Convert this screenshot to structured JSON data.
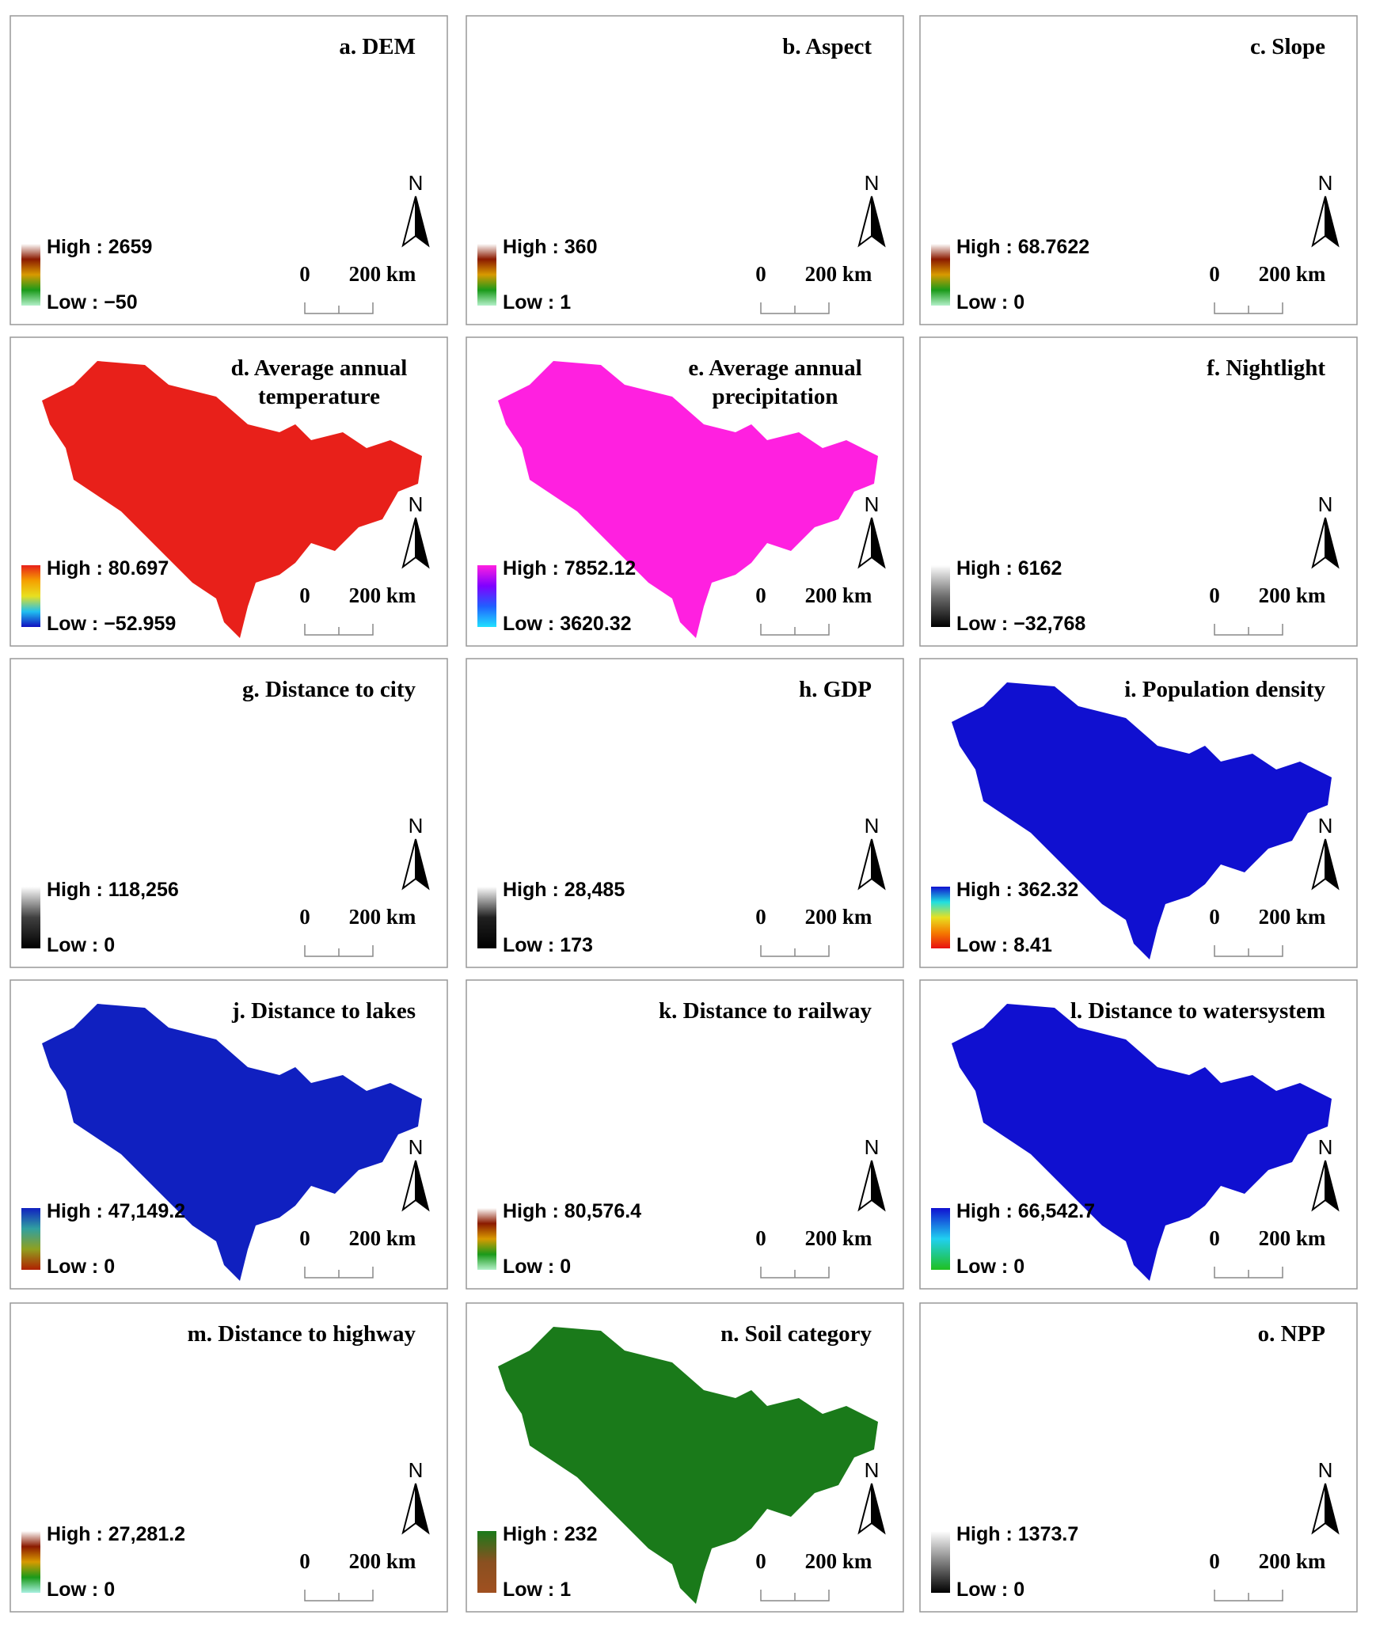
{
  "panels": [
    {
      "title": [
        "a. DEM"
      ],
      "high": "High : 2659",
      "low": "Low : −50",
      "north": "N",
      "scale": [
        "0",
        "200 km"
      ],
      "colors": [
        "#ffffff",
        "#8b1a00",
        "#d89a00",
        "#1a9a1a",
        "#b3f0c8"
      ]
    },
    {
      "title": [
        "b. Aspect"
      ],
      "high": "High : 360",
      "low": "Low : 1",
      "north": "N",
      "scale": [
        "0",
        "200 km"
      ],
      "colors": [
        "#ffffff",
        "#8b1a00",
        "#d89a00",
        "#1a9a1a",
        "#b3f0c8"
      ]
    },
    {
      "title": [
        "c. Slope"
      ],
      "high": "High : 68.7622",
      "low": "Low : 0",
      "north": "N",
      "scale": [
        "0",
        "200 km"
      ],
      "colors": [
        "#ffffff",
        "#8b1a00",
        "#d89a00",
        "#1a9a1a",
        "#b3f0c8"
      ]
    },
    {
      "title": [
        "d. Average annual",
        "temperature"
      ],
      "high": "High : 80.697",
      "low": "Low : −52.959",
      "north": "N",
      "scale": [
        "0",
        "200 km"
      ],
      "colors": [
        "#e8201a",
        "#f5a000",
        "#e8e020",
        "#20c0f0",
        "#1010c0"
      ]
    },
    {
      "title": [
        "e. Average annual",
        "precipitation"
      ],
      "high": "High : 7852.12",
      "low": "Low : 3620.32",
      "north": "N",
      "scale": [
        "0",
        "200 km"
      ],
      "colors": [
        "#ff20e0",
        "#8000ff",
        "#2060ff",
        "#20e0ff"
      ]
    },
    {
      "title": [
        "f. Nightlight"
      ],
      "high": "High : 6162",
      "low": "Low : −32,768",
      "north": "N",
      "scale": [
        "0",
        "200 km"
      ],
      "colors": [
        "#ffffff",
        "#6e6e6e",
        "#000000"
      ]
    },
    {
      "title": [
        "g. Distance to city"
      ],
      "high": "High : 118,256",
      "low": "Low : 0",
      "north": "N",
      "scale": [
        "0",
        "200 km"
      ],
      "colors": [
        "#ffffff",
        "#404040",
        "#000000"
      ]
    },
    {
      "title": [
        "h. GDP"
      ],
      "high": "High : 28,485",
      "low": "Low : 173",
      "north": "N",
      "scale": [
        "0",
        "200 km"
      ],
      "colors": [
        "#ffffff",
        "#202020",
        "#000000"
      ]
    },
    {
      "title": [
        "i. Population density"
      ],
      "high": "High : 362.32",
      "low": "Low : 8.41",
      "north": "N",
      "scale": [
        "0",
        "200 km"
      ],
      "colors": [
        "#1010d0",
        "#20e0e0",
        "#e8e020",
        "#f57a00",
        "#e81010"
      ]
    },
    {
      "title": [
        "j. Distance to lakes"
      ],
      "high": "High : 47,149.2",
      "low": "Low : 0",
      "north": "N",
      "scale": [
        "0",
        "200 km"
      ],
      "colors": [
        "#1020c0",
        "#30a0a0",
        "#90a020",
        "#b02000"
      ]
    },
    {
      "title": [
        "k. Distance to railway"
      ],
      "high": "High : 80,576.4",
      "low": "Low : 0",
      "north": "N",
      "scale": [
        "0",
        "200 km"
      ],
      "colors": [
        "#ffffff",
        "#8b1a00",
        "#d89a00",
        "#1a9a1a",
        "#b3f0c8"
      ]
    },
    {
      "title": [
        "l. Distance to watersystem"
      ],
      "high": "High : 66,542.7",
      "low": "Low : 0",
      "north": "N",
      "scale": [
        "0",
        "200 km"
      ],
      "colors": [
        "#1010d0",
        "#20d0f0",
        "#20c020"
      ]
    },
    {
      "title": [
        "m. Distance to highway"
      ],
      "high": "High : 27,281.2",
      "low": "Low : 0",
      "north": "N",
      "scale": [
        "0",
        "200 km"
      ],
      "colors": [
        "#ffffff",
        "#8b1a00",
        "#d89a00",
        "#1a9a1a",
        "#a8f0e0"
      ]
    },
    {
      "title": [
        "n. Soil category"
      ],
      "high": "High : 232",
      "low": "Low : 1",
      "north": "N",
      "scale": [
        "0",
        "200 km"
      ],
      "colors": [
        "#1a7a1a",
        "#8a5020",
        "#a05020"
      ]
    },
    {
      "title": [
        "o. NPP"
      ],
      "high": "High : 1373.7",
      "low": "Low : 0",
      "north": "N",
      "scale": [
        "0",
        "200 km"
      ],
      "colors": [
        "#ffffff",
        "#808080",
        "#000000"
      ]
    }
  ]
}
